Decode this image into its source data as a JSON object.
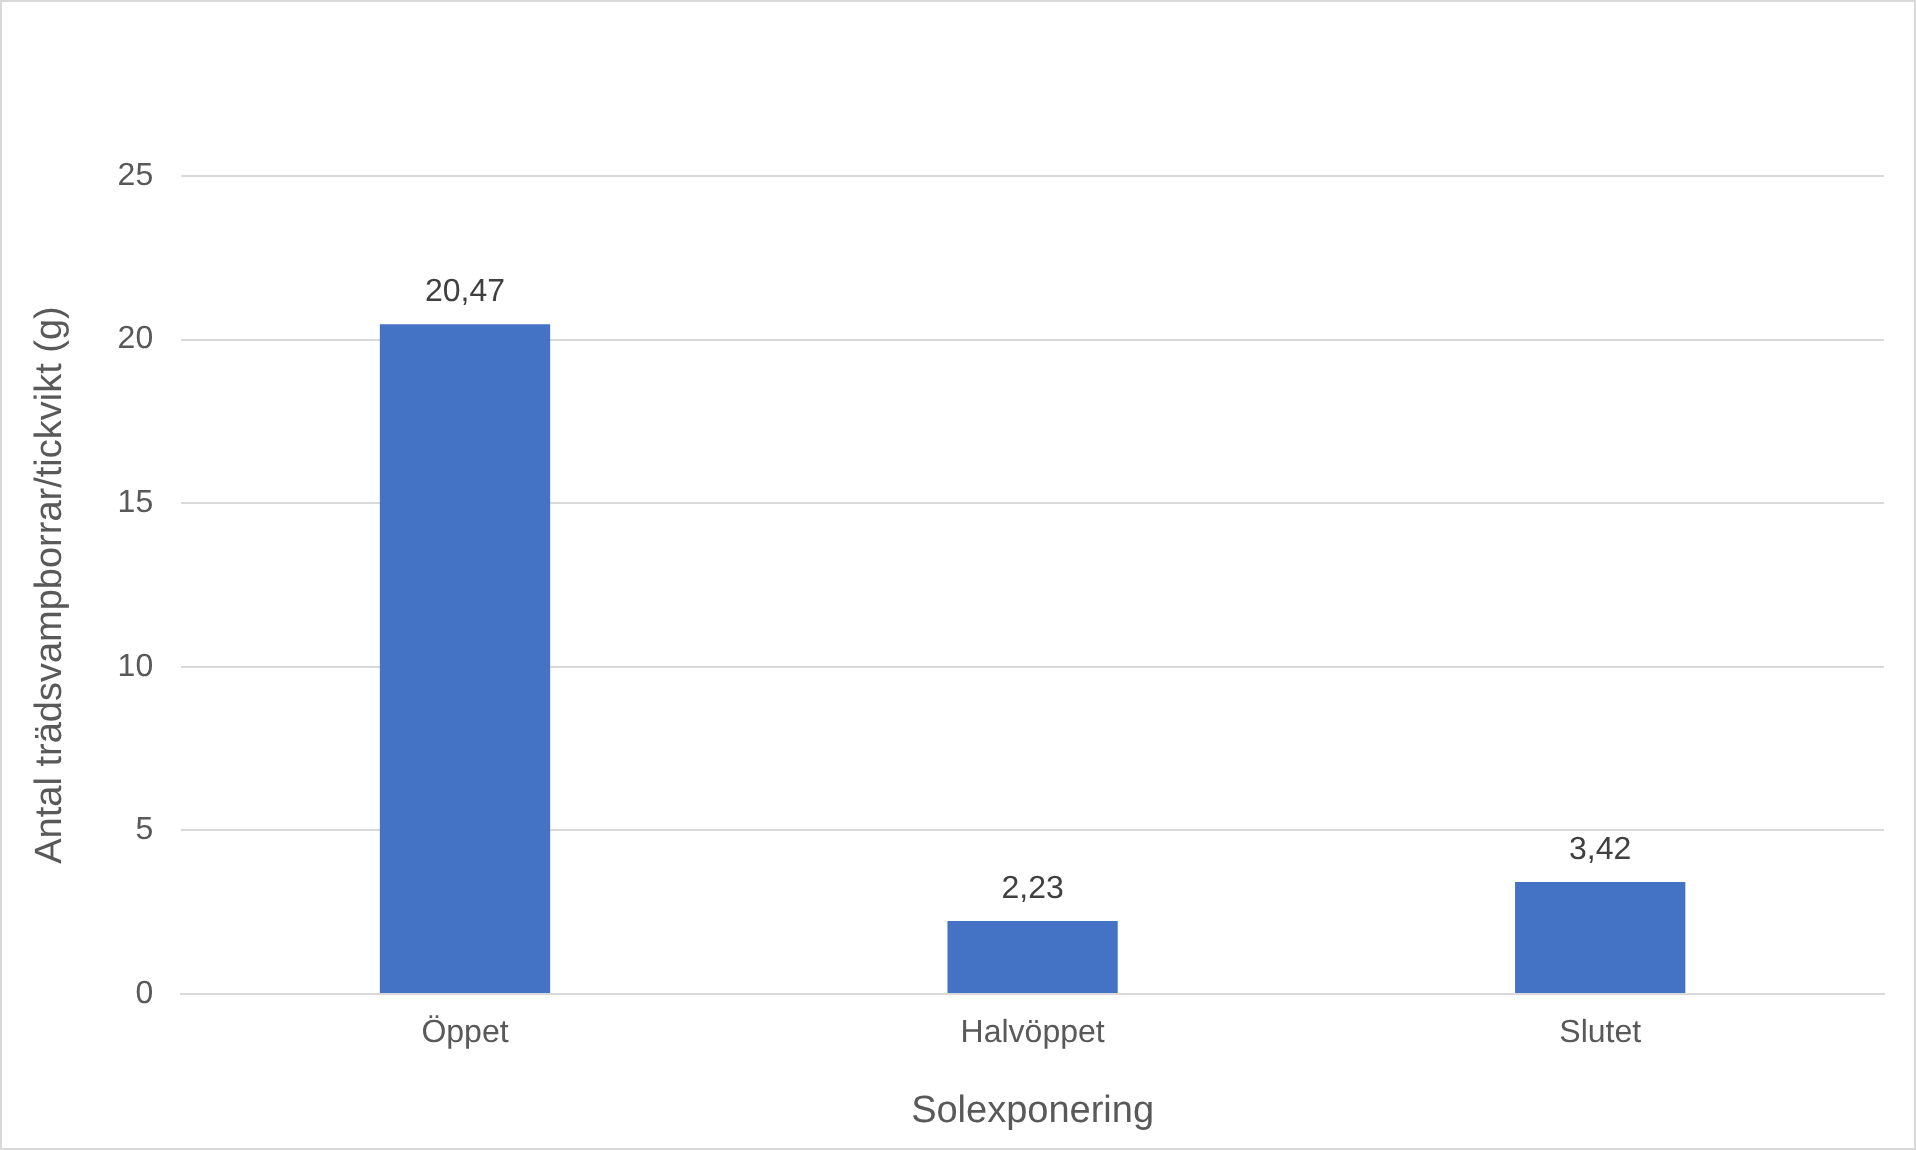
{
  "chart_data": {
    "type": "bar",
    "xlabel": "Solexponering",
    "ylabel": "Antal trädsvampborrar/tickvikt (g)",
    "categories": [
      "Öppet",
      "Halvöppet",
      "Slutet"
    ],
    "values": [
      20.47,
      2.23,
      3.42
    ],
    "value_labels": [
      "20,47",
      "2,23",
      "3,42"
    ],
    "color": "#4472c4",
    "ylim": [
      0,
      25
    ],
    "yticks": [
      0,
      5,
      10,
      15,
      20,
      25
    ],
    "grid": "y",
    "legend": false
  }
}
